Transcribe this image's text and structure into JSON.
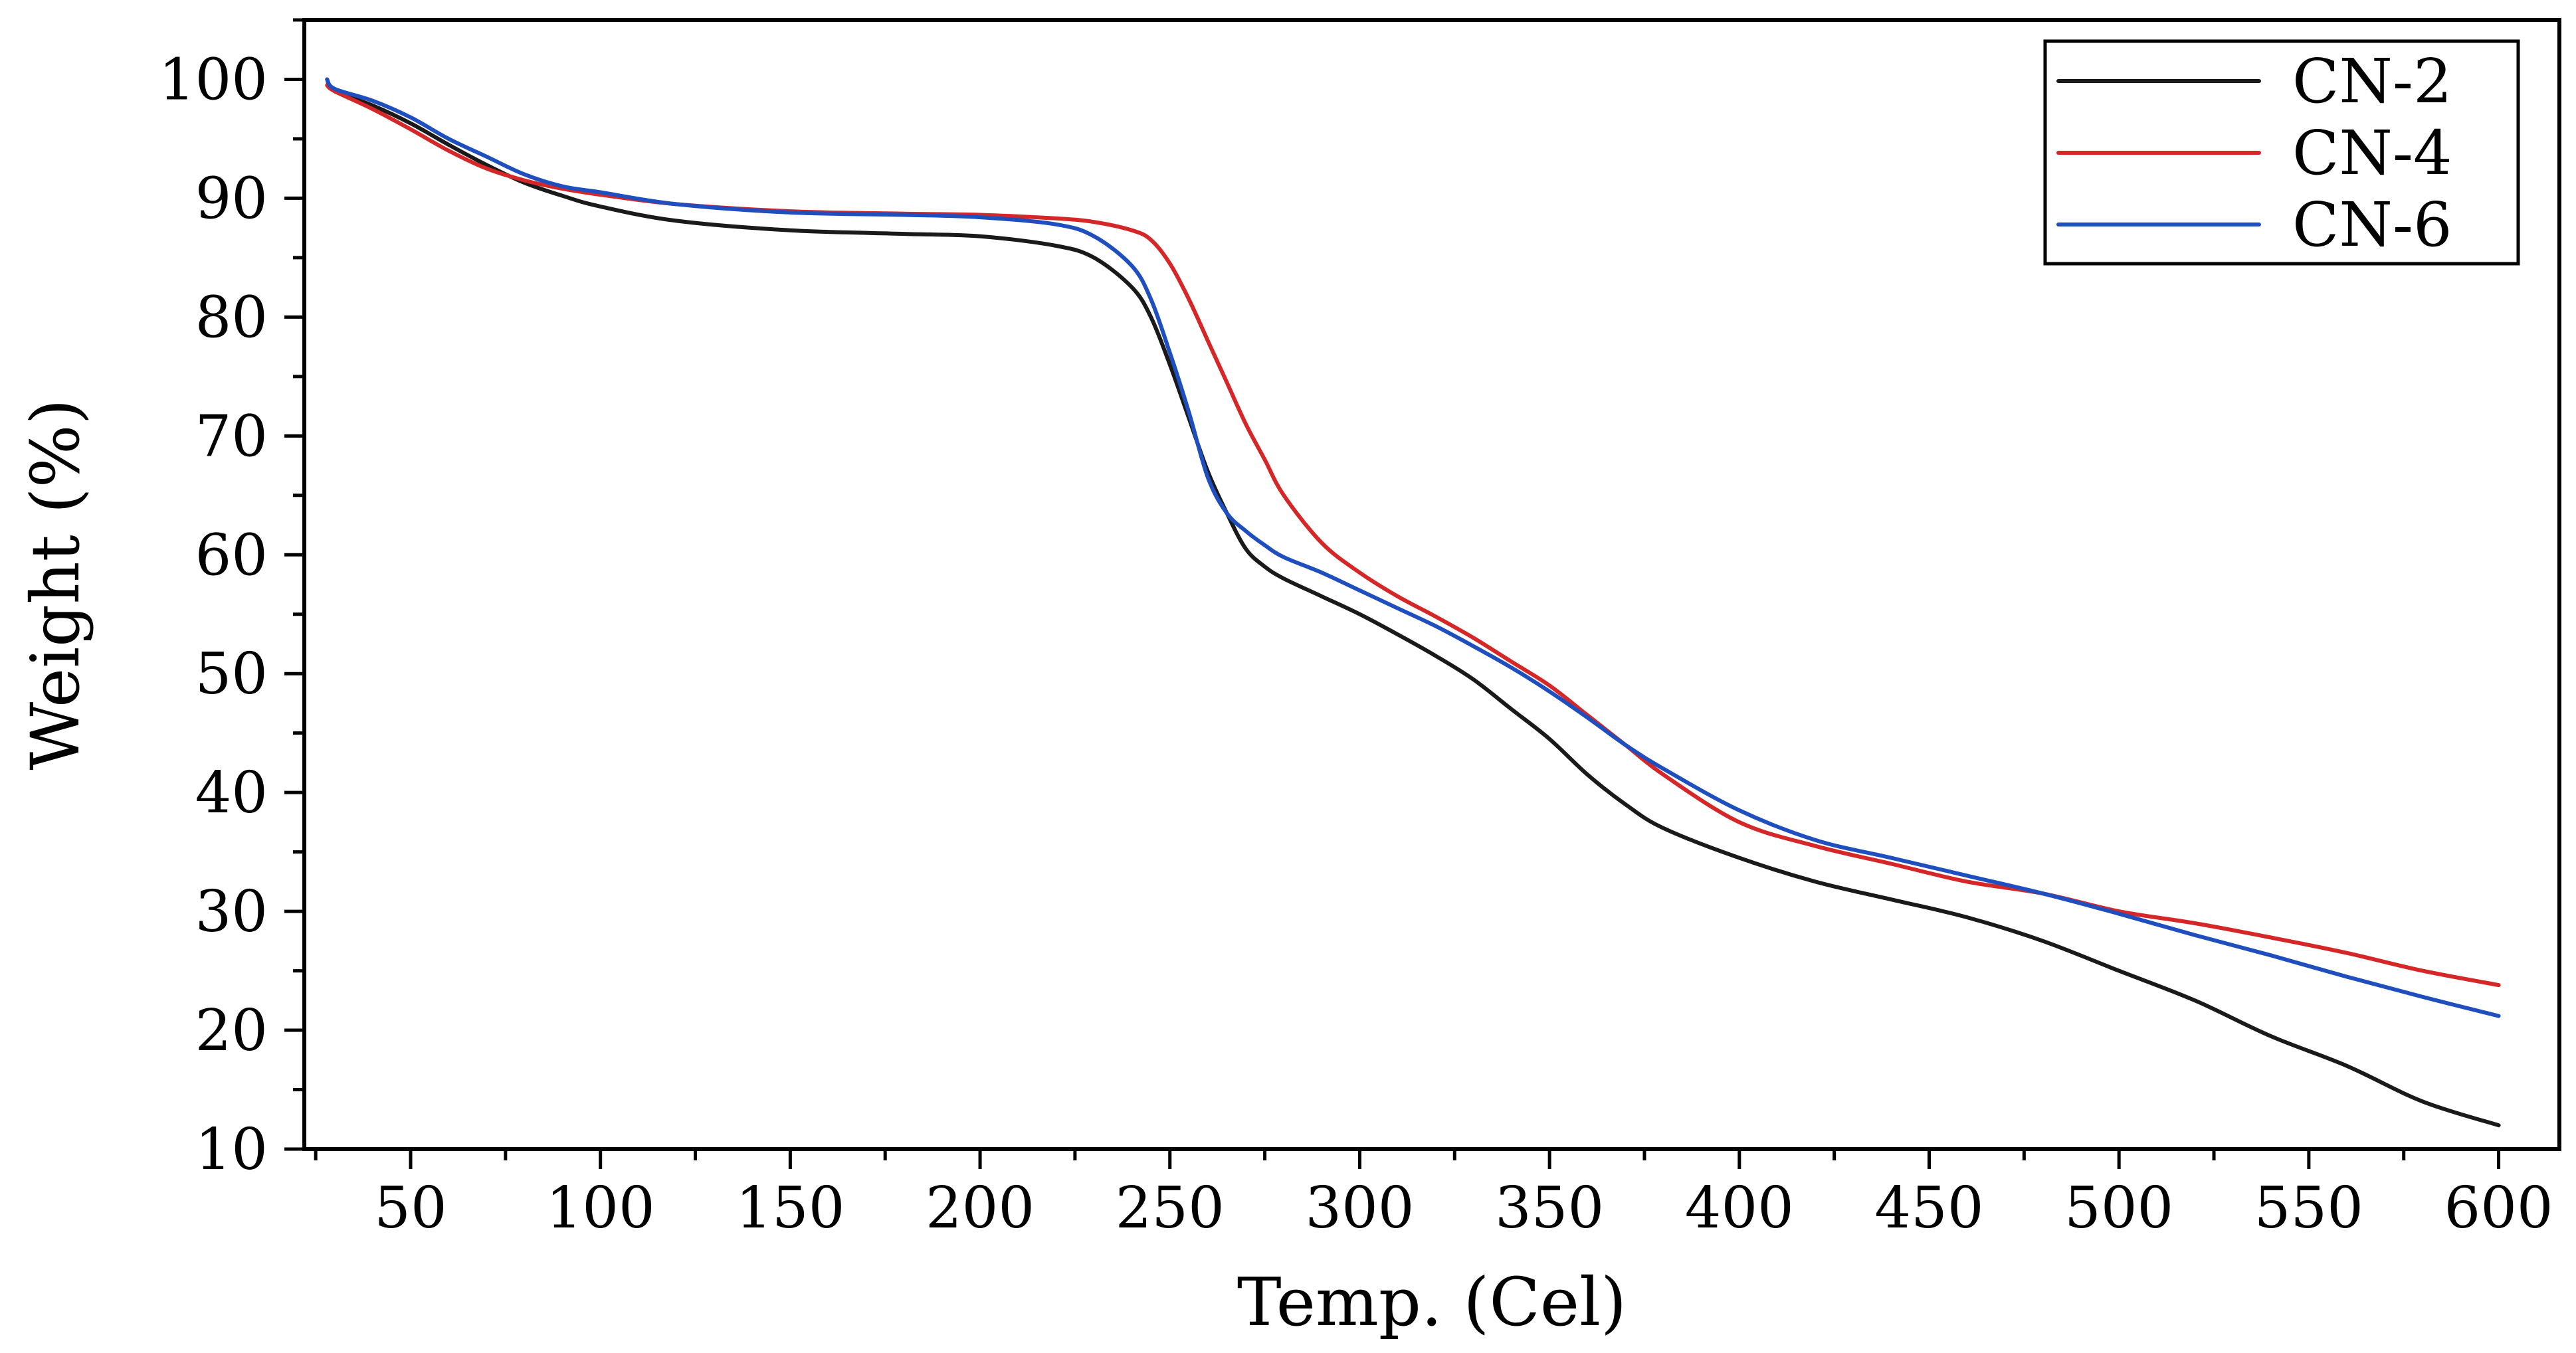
{
  "chart_data": {
    "type": "line",
    "title": "",
    "xlabel": "Temp. (Cel)",
    "ylabel": "Weight (%)",
    "xlim": [
      22,
      616
    ],
    "ylim": [
      10,
      105
    ],
    "xticks": [
      50,
      100,
      150,
      200,
      250,
      300,
      350,
      400,
      450,
      500,
      550,
      600
    ],
    "xtick_labels": [
      "50",
      "100",
      "150",
      "200",
      "250",
      "300",
      "350",
      "400",
      "450",
      "500",
      "550",
      "600"
    ],
    "yticks": [
      10,
      20,
      30,
      40,
      50,
      60,
      70,
      80,
      90,
      100
    ],
    "ytick_labels": [
      "10",
      "20",
      "30",
      "40",
      "50",
      "60",
      "70",
      "80",
      "90",
      "100"
    ],
    "grid": false,
    "legend_position": "top-right",
    "series": [
      {
        "name": "CN-2",
        "color": "#1a1a1a",
        "x": [
          28,
          30,
          40,
          50,
          60,
          70,
          80,
          90,
          100,
          120,
          150,
          180,
          200,
          220,
          230,
          240,
          245,
          250,
          255,
          260,
          265,
          270,
          275,
          280,
          290,
          300,
          310,
          320,
          330,
          340,
          350,
          360,
          370,
          380,
          400,
          420,
          440,
          460,
          480,
          500,
          520,
          540,
          560,
          580,
          600
        ],
        "values": [
          100,
          99,
          97.8,
          96.3,
          94.5,
          92.8,
          91.3,
          90.2,
          89.3,
          88.1,
          87.3,
          87.0,
          86.8,
          86.0,
          85.0,
          82.5,
          80.0,
          76.0,
          71.5,
          67.0,
          63.5,
          60.5,
          59.0,
          58.0,
          56.5,
          55.0,
          53.3,
          51.5,
          49.5,
          47.0,
          44.5,
          41.5,
          39.0,
          37.0,
          34.5,
          32.5,
          31.0,
          29.5,
          27.5,
          25.0,
          22.5,
          19.5,
          17.0,
          14.0,
          12.0
        ]
      },
      {
        "name": "CN-4",
        "color": "#d62728",
        "x": [
          28,
          30,
          40,
          50,
          60,
          70,
          80,
          90,
          100,
          120,
          150,
          180,
          200,
          220,
          230,
          240,
          245,
          250,
          255,
          260,
          265,
          270,
          275,
          280,
          290,
          300,
          310,
          320,
          330,
          340,
          350,
          360,
          370,
          380,
          400,
          420,
          440,
          460,
          480,
          500,
          520,
          540,
          560,
          580,
          600
        ],
        "values": [
          99.5,
          99,
          97.5,
          95.8,
          94.0,
          92.5,
          91.5,
          90.8,
          90.3,
          89.5,
          88.9,
          88.7,
          88.6,
          88.3,
          88.0,
          87.3,
          86.5,
          84.5,
          81.5,
          78.0,
          74.5,
          71.0,
          68.0,
          65.0,
          61.0,
          58.5,
          56.5,
          54.8,
          53.0,
          51.0,
          49.0,
          46.5,
          44.0,
          41.5,
          37.5,
          35.5,
          34.0,
          32.5,
          31.5,
          30.0,
          29.0,
          27.8,
          26.5,
          25.0,
          23.8
        ]
      },
      {
        "name": "CN-6",
        "color": "#1f4fbf",
        "x": [
          28,
          30,
          40,
          50,
          60,
          70,
          80,
          90,
          100,
          120,
          150,
          180,
          200,
          220,
          230,
          240,
          245,
          250,
          255,
          260,
          265,
          270,
          275,
          280,
          290,
          300,
          310,
          320,
          330,
          340,
          350,
          360,
          370,
          380,
          400,
          420,
          440,
          460,
          480,
          500,
          520,
          540,
          560,
          580,
          600
        ],
        "values": [
          100,
          99.2,
          98.2,
          96.8,
          95.0,
          93.5,
          92.0,
          91.0,
          90.5,
          89.5,
          88.8,
          88.6,
          88.4,
          87.8,
          86.8,
          84.3,
          81.5,
          77.0,
          72.0,
          66.5,
          63.5,
          62.0,
          60.8,
          59.8,
          58.5,
          57.0,
          55.5,
          54.0,
          52.3,
          50.5,
          48.5,
          46.3,
          44.0,
          42.0,
          38.5,
          36.0,
          34.5,
          33.0,
          31.5,
          29.8,
          28.0,
          26.3,
          24.5,
          22.8,
          21.2
        ]
      }
    ]
  }
}
